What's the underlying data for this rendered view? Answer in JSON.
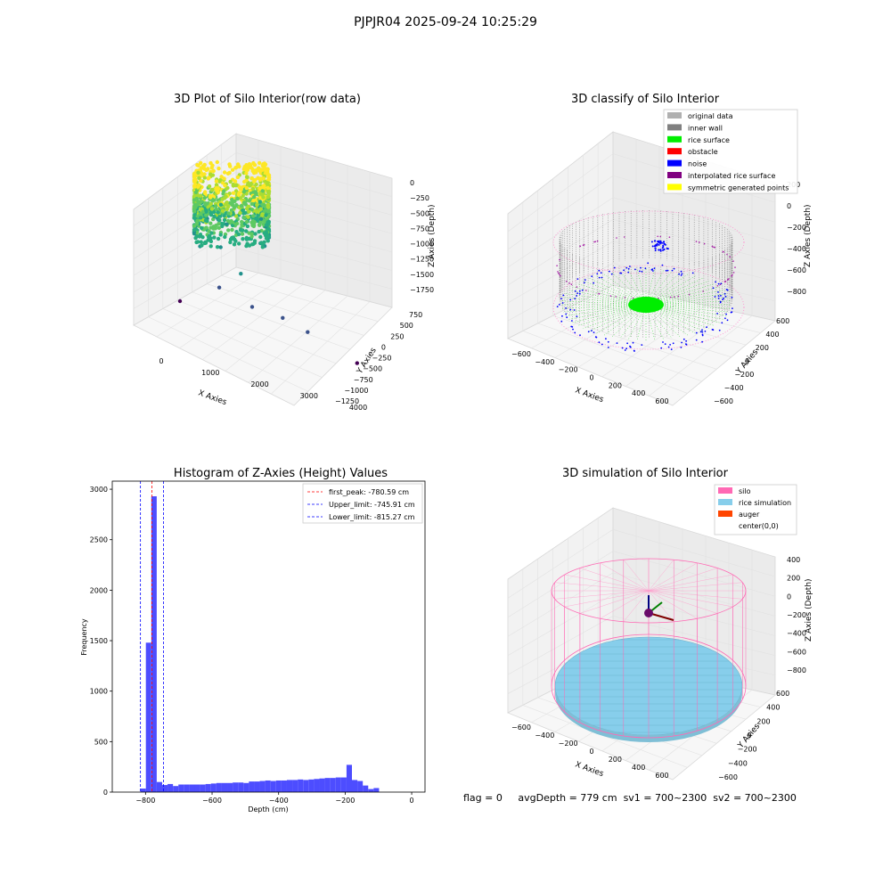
{
  "figure": {
    "suptitle": "PJPJR04 2025-09-24 10:25:29",
    "status": {
      "flag": "flag = 0",
      "avg_depth": "avgDepth = 779 cm",
      "sv1": "sv1 = 700~2300",
      "sv2": "sv2 = 700~2300"
    }
  },
  "chart_data": [
    {
      "type": "scatter",
      "projection": "3d",
      "title": "3D Plot of Silo Interior(row data)",
      "xlabel": "X Axies",
      "ylabel": "Y Axies",
      "zlabel": "Z Axies (Depth)",
      "x_ticks": [
        "0",
        "1000",
        "2000",
        "3000",
        "4000"
      ],
      "y_ticks": [
        "750",
        "500",
        "250",
        "0",
        "−250",
        "−500",
        "−750",
        "−1000",
        "−1250"
      ],
      "z_ticks": [
        "0",
        "−250",
        "−500",
        "−750",
        "−1000",
        "−1250",
        "−1500",
        "−1750"
      ],
      "colormap": "viridis",
      "outliers": [
        {
          "x": 1150,
          "y": -300,
          "z": -1450
        },
        {
          "x": 1800,
          "y": -500,
          "z": -1550
        },
        {
          "x": 2900,
          "y": 100,
          "z": -1650
        },
        {
          "x": 3300,
          "y": -200,
          "z": -1700
        },
        {
          "x": 2100,
          "y": 400,
          "z": -1250
        },
        {
          "x": 600,
          "y": 300,
          "z": -1900
        },
        {
          "x": 3900,
          "y": -1100,
          "z": -1800
        }
      ]
    },
    {
      "type": "scatter",
      "projection": "3d",
      "title": "3D classify of Silo Interior",
      "xlabel": "X Axies",
      "ylabel": "Y Axies",
      "zlabel": "Z Axies (Depth)",
      "x_ticks": [
        "−600",
        "−400",
        "−200",
        "0",
        "200",
        "400",
        "600"
      ],
      "y_ticks": [
        "600",
        "400",
        "200",
        "0",
        "−200",
        "−400",
        "−600"
      ],
      "z_ticks": [
        "200",
        "0",
        "−200",
        "−400",
        "−600",
        "−800"
      ],
      "legend_position": "top-right",
      "legend": [
        {
          "label": "original data",
          "color": "#b0b0b0"
        },
        {
          "label": "inner wall",
          "color": "#808080"
        },
        {
          "label": "rice surface",
          "color": "#00ee00"
        },
        {
          "label": "obstacle",
          "color": "#ff0000"
        },
        {
          "label": "noise",
          "color": "#0000ff"
        },
        {
          "label": "interpolated rice surface",
          "color": "#800080"
        },
        {
          "label": "symmetric generated points",
          "color": "#ffff00"
        }
      ]
    },
    {
      "type": "bar",
      "title": "Histogram of Z-Axies (Height) Values",
      "xlabel": "Depth (cm)",
      "ylabel": "Frequency",
      "xlim": [
        -900,
        40
      ],
      "ylim": [
        0,
        3080
      ],
      "x_ticks": [
        -800,
        -600,
        -400,
        -200,
        0
      ],
      "x_tick_labels": [
        "−800",
        "−600",
        "−400",
        "−200",
        "0"
      ],
      "y_ticks": [
        0,
        500,
        1000,
        1500,
        2000,
        2500,
        3000
      ],
      "y_tick_labels": [
        "0",
        "500",
        "1000",
        "1500",
        "2000",
        "2500",
        "3000"
      ],
      "bar_color": "#4d4dff",
      "bin_width": 16.3,
      "bin_start": -815.3,
      "values": [
        35,
        1480,
        2930,
        100,
        70,
        80,
        60,
        75,
        75,
        75,
        75,
        75,
        80,
        85,
        90,
        90,
        90,
        95,
        95,
        90,
        105,
        105,
        110,
        115,
        110,
        115,
        115,
        120,
        120,
        125,
        120,
        125,
        130,
        135,
        140,
        140,
        145,
        145,
        270,
        120,
        110,
        65,
        30,
        40
      ],
      "legend_position": "top-right",
      "vlines": [
        {
          "label": "first_peak: -780.59 cm",
          "x": -780.59,
          "color": "#ff0000"
        },
        {
          "label": "Upper_limit: -745.91 cm",
          "x": -745.91,
          "color": "#0000ff"
        },
        {
          "label": "Lower_limit: -815.27 cm",
          "x": -815.27,
          "color": "#0000ff"
        }
      ]
    },
    {
      "type": "scatter",
      "projection": "3d",
      "title": "3D simulation of Silo Interior",
      "xlabel": "X Axies",
      "ylabel": "Y Axies",
      "zlabel": "Z Axies (Depth)",
      "x_ticks": [
        "−600",
        "−400",
        "−200",
        "0",
        "200",
        "400",
        "600"
      ],
      "y_ticks": [
        "600",
        "400",
        "200",
        "0",
        "−200",
        "−400",
        "−600"
      ],
      "z_ticks": [
        "400",
        "200",
        "0",
        "−200",
        "−400",
        "−600",
        "−800"
      ],
      "legend_position": "top-right",
      "legend": [
        {
          "label": "silo",
          "color": "#ff69b4"
        },
        {
          "label": "rice simulation",
          "color": "#87ceeb"
        },
        {
          "label": "auger",
          "color": "#ff4500"
        },
        {
          "label": "center(0,0)",
          "color": "#ffffff"
        }
      ]
    }
  ]
}
